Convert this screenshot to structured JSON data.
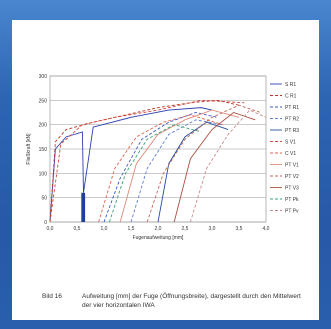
{
  "caption": {
    "number": "Bild 16",
    "text": "Aufweitung [mm] der Fuge (Öffnungsbreite), dargestellt durch den Mittelwert der vier horizontalen IWA"
  },
  "chart_data": {
    "type": "line",
    "xlabel": "Fugenaufweitung [mm]",
    "ylabel": "Fließkraft [kN]",
    "xlim": [
      0,
      4.0
    ],
    "ylim": [
      0,
      300
    ],
    "xticks": [
      "0,0",
      "0,5",
      "1,0",
      "1,5",
      "2,0",
      "2,5",
      "3,0",
      "3,5",
      "4,0"
    ],
    "yticks": [
      "0",
      "50",
      "100",
      "150",
      "200",
      "250",
      "300"
    ],
    "grid": true,
    "legend": "right",
    "series": [
      {
        "name": "S R1",
        "color": "#2b3fb0",
        "dash": "",
        "x": [
          0,
          0.1,
          0.3,
          0.6,
          0.62,
          0.8,
          1.5,
          2.2,
          2.8,
          3.0
        ],
        "y": [
          0,
          150,
          175,
          185,
          60,
          195,
          215,
          230,
          235,
          230
        ]
      },
      {
        "name": "C R1",
        "color": "#c0392b",
        "dash": "3,2",
        "x": [
          0,
          0.1,
          0.3,
          0.8,
          1.4,
          2.0,
          2.6,
          3.1,
          3.5
        ],
        "y": [
          0,
          165,
          190,
          205,
          220,
          235,
          245,
          250,
          240
        ]
      },
      {
        "name": "PT R1",
        "color": "#3a56c9",
        "dash": "3,2",
        "x": [
          1.0,
          1.3,
          1.7,
          2.2,
          2.7,
          3.1
        ],
        "y": [
          0,
          90,
          170,
          205,
          225,
          215
        ]
      },
      {
        "name": "PT R2",
        "color": "#5f7fd4",
        "dash": "3,2",
        "x": [
          1.5,
          1.8,
          2.2,
          2.7,
          3.2
        ],
        "y": [
          0,
          110,
          180,
          210,
          200
        ]
      },
      {
        "name": "PT R3",
        "color": "#274e9e",
        "dash": "",
        "x": [
          2.0,
          2.2,
          2.5,
          2.9,
          3.3
        ],
        "y": [
          0,
          120,
          175,
          205,
          190
        ]
      },
      {
        "name": "S V1",
        "color": "#d24a3a",
        "dash": "3,2",
        "x": [
          0,
          0.2,
          0.6,
          1.2,
          2.0,
          2.8,
          3.6
        ],
        "y": [
          0,
          160,
          200,
          215,
          230,
          250,
          245
        ]
      },
      {
        "name": "C V1",
        "color": "#e06050",
        "dash": "3,2",
        "x": [
          0.9,
          1.2,
          1.6,
          2.1,
          2.6,
          3.2
        ],
        "y": [
          0,
          110,
          175,
          205,
          220,
          200
        ]
      },
      {
        "name": "PT V1",
        "color": "#e08a78",
        "dash": "",
        "x": [
          1.3,
          1.6,
          2.0,
          2.5,
          3.0,
          3.5
        ],
        "y": [
          0,
          120,
          180,
          210,
          230,
          215
        ]
      },
      {
        "name": "PT V2",
        "color": "#c06a58",
        "dash": "3,2",
        "x": [
          1.8,
          2.1,
          2.5,
          3.0,
          3.5,
          3.9
        ],
        "y": [
          0,
          100,
          170,
          215,
          240,
          225
        ]
      },
      {
        "name": "PT V3",
        "color": "#a8503f",
        "dash": "",
        "x": [
          2.3,
          2.6,
          3.0,
          3.4,
          3.8
        ],
        "y": [
          0,
          130,
          190,
          225,
          210
        ]
      },
      {
        "name": "PT Pk",
        "color": "#3aa07a",
        "dash": "3,2",
        "x": [
          1.1,
          1.4,
          1.8,
          2.3,
          2.8
        ],
        "y": [
          0,
          100,
          170,
          200,
          185
        ]
      },
      {
        "name": "PT Pv",
        "color": "#c98a8a",
        "dash": "3,2",
        "x": [
          2.6,
          2.9,
          3.3,
          3.7,
          4.0
        ],
        "y": [
          0,
          110,
          180,
          230,
          215
        ]
      }
    ]
  }
}
